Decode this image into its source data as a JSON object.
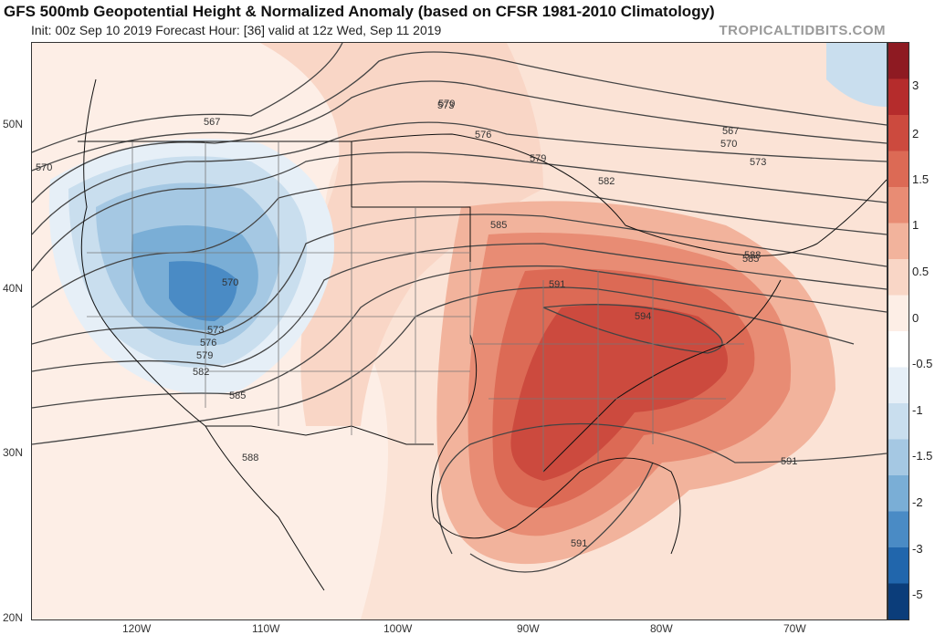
{
  "header": {
    "title": "GFS 500mb Geopotential Height & Normalized Anomaly (based on CFSR 1981-2010 Climatology)",
    "subtitle": "Init: 00z Sep 10 2019   Forecast Hour: [36]   valid at 12z Wed, Sep 11 2019",
    "brand": "TROPICALTIDBITS.COM"
  },
  "axes": {
    "lat_labels": [
      "50N",
      "40N",
      "30N",
      "20N"
    ],
    "lon_labels": [
      "120W",
      "110W",
      "100W",
      "90W",
      "80W",
      "70W"
    ]
  },
  "colorbar": {
    "labels": [
      "3",
      "2",
      "1.5",
      "1",
      "0.5",
      "0",
      "-0.5",
      "-1",
      "-1.5",
      "-2",
      "-3",
      "-5"
    ],
    "colors": [
      "#8e1a22",
      "#b52c2c",
      "#cc4a3e",
      "#dc6a55",
      "#e88c74",
      "#f2b39c",
      "#f9d6c6",
      "#fdeee6",
      "#ffffff",
      "#e6eff7",
      "#c9deee",
      "#a5c8e3",
      "#7aaed6",
      "#4a8bc5",
      "#2166ac",
      "#0b3d7a"
    ]
  },
  "contours": {
    "labels": [
      "567",
      "570",
      "573",
      "576",
      "579",
      "582",
      "585",
      "588",
      "591",
      "594",
      "570",
      "573",
      "576",
      "579",
      "582",
      "585",
      "567",
      "570",
      "573",
      "582",
      "585",
      "588",
      "591",
      "591",
      "591",
      "570",
      "588"
    ]
  }
}
